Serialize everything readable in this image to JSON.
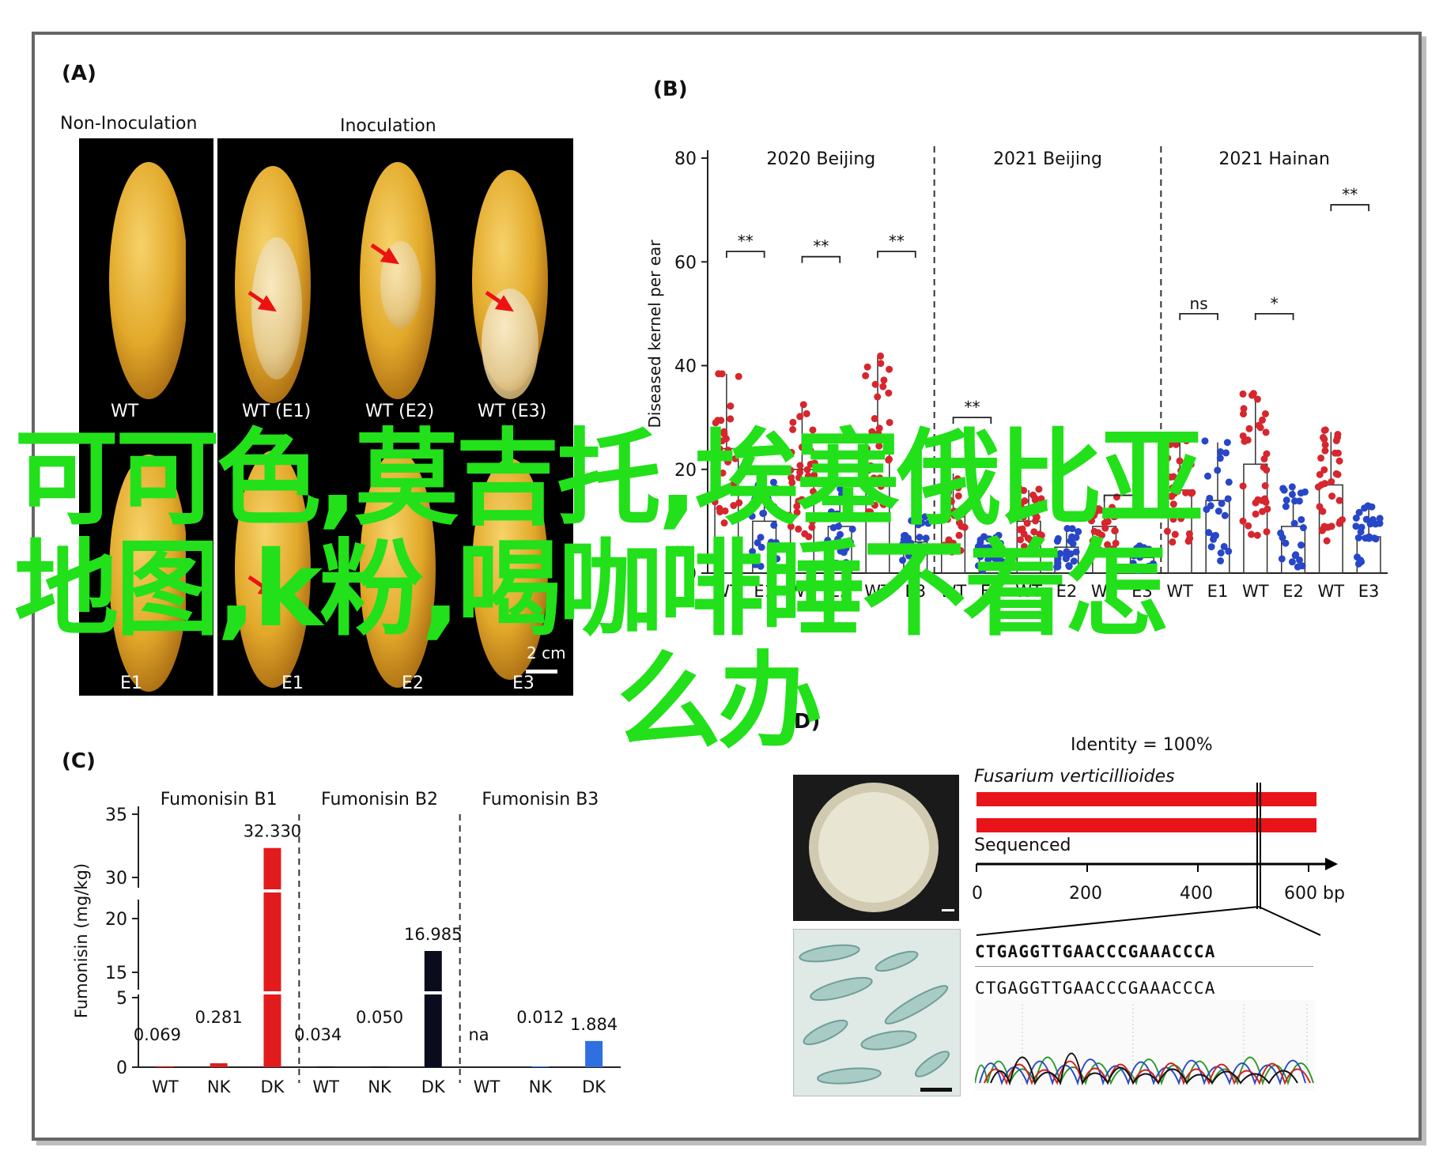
{
  "panel_a": {
    "label": "(A)",
    "header_non": "Non-Inoculation",
    "header_ino": "Inoculation",
    "row1": [
      "WT",
      "WT (E1)",
      "WT (E2)",
      "WT (E3)"
    ],
    "row2": [
      "E1",
      "E1",
      "E2",
      "E3"
    ],
    "scale": "2 cm"
  },
  "panel_b": {
    "label": "(B)",
    "ylabel": "Diseased kernel per ear",
    "yticks": [
      "0",
      "20",
      "40",
      "60",
      "80"
    ],
    "groups": [
      "2020 Beijing",
      "2021 Beijing",
      "2021 Hainan"
    ],
    "xlabels": [
      "WT",
      "E1",
      "WT",
      "E2",
      "WT",
      "E3",
      "WT",
      "E1",
      "WT",
      "E2",
      "WT",
      "E3",
      "WT",
      "E1",
      "WT",
      "E2",
      "WT",
      "E3"
    ],
    "sig": [
      "**",
      "**",
      "**",
      "**",
      "*",
      "ns",
      "*",
      "**"
    ]
  },
  "panel_c": {
    "label": "(C)",
    "ylabel": "Fumonisin (mg/kg)",
    "yticks": [
      "0",
      "5",
      "15",
      "20",
      "30",
      "35"
    ],
    "toxins": [
      "Fumonisin B1",
      "Fumonisin B2",
      "Fumonisin B3"
    ],
    "xlabels": [
      "WT",
      "NK",
      "DK",
      "WT",
      "NK",
      "DK",
      "WT",
      "NK",
      "DK"
    ],
    "value_labels": [
      "0.069",
      "0.281",
      "32.330",
      "0.034",
      "0.050",
      "16.985",
      "na",
      "0.012",
      "1.884"
    ]
  },
  "panel_d": {
    "label": "(D)",
    "identity": "Identity = 100%",
    "species": "Fusarium verticillioides",
    "sequenced": "Sequenced",
    "axis": [
      "0",
      "200",
      "400",
      "600 bp"
    ],
    "seq1": "CTGAGGTTGAACCCGAAACCCA",
    "seq2": "CTGAGGTTGAACCCGAAACCCA"
  },
  "overlay_text": {
    "line1": "可可色,莫吉托,埃塞俄比亚",
    "line2": "地图,k粉,喝咖啡睡不着怎",
    "line3": "么办"
  },
  "chart_data": [
    {
      "type": "bar",
      "title": "",
      "ylabel": "Diseased kernel per ear",
      "ylim": [
        0,
        80
      ],
      "categories": [
        "2020 Beijing WT",
        "2020 Beijing E1",
        "2020 Beijing WT",
        "2020 Beijing E2",
        "2020 Beijing WT",
        "2020 Beijing E3",
        "2021 Beijing WT",
        "2021 Beijing E1",
        "2021 Beijing WT",
        "2021 Beijing E2",
        "2021 Beijing WT",
        "2021 Beijing E3",
        "2021 Hainan WT",
        "2021 Hainan E1",
        "2021 Hainan WT",
        "2021 Hainan E2",
        "2021 Hainan WT",
        "2021 Hainan E3"
      ],
      "values": [
        24,
        10,
        20,
        9,
        26,
        6,
        12,
        4,
        10,
        5,
        9,
        3,
        16,
        14,
        21,
        9,
        17,
        7
      ],
      "colors": {
        "WT": "#d6262e",
        "mutant": "#2746c8"
      }
    },
    {
      "type": "bar",
      "title": "",
      "ylabel": "Fumonisin (mg/kg)",
      "categories": [
        "WT",
        "NK",
        "DK",
        "WT",
        "NK",
        "DK",
        "WT",
        "NK",
        "DK"
      ],
      "groups": [
        "Fumonisin B1",
        "Fumonisin B2",
        "Fumonisin B3"
      ],
      "values": [
        0.069,
        0.281,
        32.33,
        0.034,
        0.05,
        16.985,
        null,
        0.012,
        1.884
      ],
      "colors": {
        "Fumonisin B1": "#e21c1c",
        "Fumonisin B2": "#0b0b1e",
        "Fumonisin B3": "#2f6fe0"
      }
    }
  ]
}
